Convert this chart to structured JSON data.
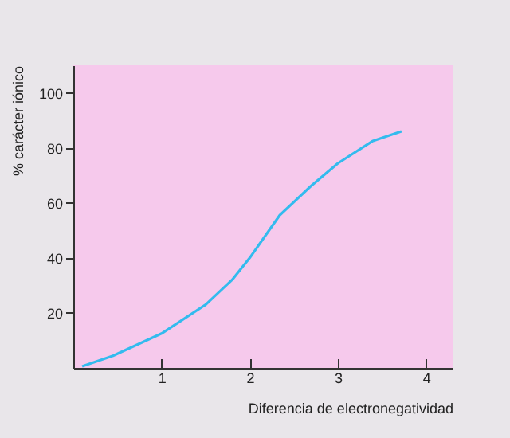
{
  "chart_data": {
    "type": "line",
    "xlabel": "Diferencia de electronegatividad",
    "ylabel": "% carácter iónico",
    "x": [
      0.1,
      0.45,
      1,
      1.5,
      1.8,
      2,
      2.34,
      2.69,
      3,
      3.39,
      3.72
    ],
    "series": [
      {
        "color": "#33bbee",
        "values": [
          0.6,
          4.4,
          12.5,
          23,
          32,
          40,
          55.5,
          66,
          74.4,
          82.4,
          86
        ]
      }
    ],
    "xlim": [
      0,
      4.3
    ],
    "ylim": [
      0,
      110
    ],
    "xticks": [
      1,
      2,
      3,
      4
    ],
    "yticks": [
      20,
      40,
      60,
      80,
      100
    ],
    "grid": false,
    "legend": false,
    "marker": "none",
    "line_style": "solid"
  }
}
